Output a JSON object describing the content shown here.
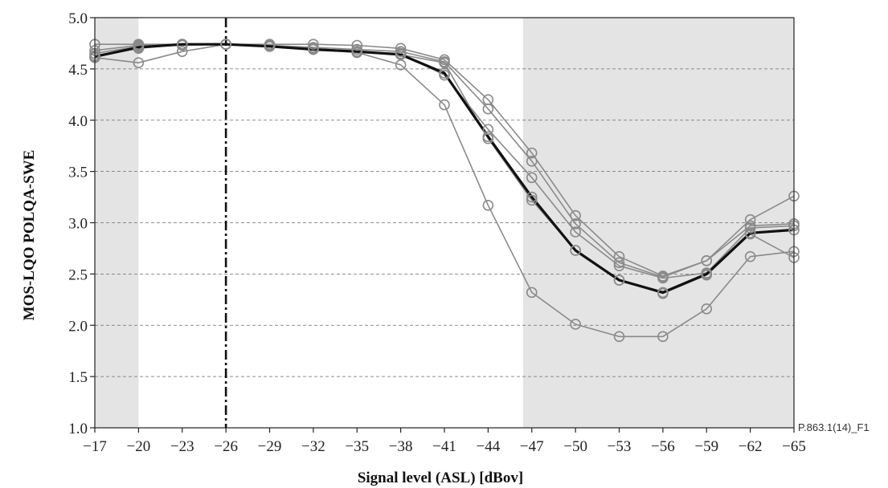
{
  "chart_data": {
    "type": "line",
    "title": "",
    "xlabel": "Signal level (ASL) [dBov]",
    "ylabel": "MOS-LQO POLQA-SWE",
    "figure_id": "P.863.1(14)_F1",
    "x": [
      -17,
      -20,
      -23,
      -26,
      -29,
      -32,
      -35,
      -38,
      -41,
      -44,
      -47,
      -50,
      -53,
      -56,
      -59,
      -62,
      -65
    ],
    "x_tick_labels": [
      "−17",
      "−20",
      "−23",
      "−26",
      "−29",
      "−32",
      "−35",
      "−38",
      "−41",
      "−44",
      "−47",
      "−50",
      "−53",
      "−56",
      "−59",
      "−62",
      "−65"
    ],
    "y_ticks": [
      1.0,
      1.5,
      2.0,
      2.5,
      3.0,
      3.5,
      4.0,
      4.5,
      5.0
    ],
    "y_tick_labels": [
      "1.0",
      "1.5",
      "2.0",
      "2.5",
      "3.0",
      "3.5",
      "4.0",
      "4.5",
      "5.0"
    ],
    "xlim": [
      -17,
      -65
    ],
    "ylim": [
      1.0,
      5.0
    ],
    "grid": "horizontal dashed",
    "shaded_regions": [
      {
        "from": -17,
        "to": -20
      },
      {
        "from": -46.4,
        "to": -65
      }
    ],
    "reference_line_x": -26,
    "series": [
      {
        "values": [
          4.74,
          4.74,
          4.74,
          4.74,
          4.74,
          4.74,
          4.73,
          4.7,
          4.59,
          4.2,
          3.68,
          3.07,
          2.67,
          2.48,
          2.63,
          3.03,
          3.26
        ],
        "color": "#8a8a8a",
        "bold": false
      },
      {
        "values": [
          4.68,
          4.73,
          4.74,
          4.74,
          4.73,
          4.71,
          4.69,
          4.67,
          4.57,
          4.11,
          3.6,
          2.99,
          2.61,
          2.47,
          2.63,
          2.97,
          2.99
        ],
        "color": "#8a8a8a",
        "bold": false
      },
      {
        "values": [
          4.65,
          4.72,
          4.73,
          4.74,
          4.72,
          4.7,
          4.67,
          4.65,
          4.44,
          3.91,
          3.44,
          2.91,
          2.58,
          2.46,
          2.51,
          2.95,
          2.97
        ],
        "color": "#8a8a8a",
        "bold": false
      },
      {
        "values": [
          4.63,
          4.7,
          4.74,
          4.74,
          4.72,
          4.69,
          4.66,
          4.64,
          4.56,
          3.82,
          3.22,
          2.73,
          2.44,
          2.31,
          2.49,
          2.89,
          2.66
        ],
        "color": "#8a8a8a",
        "bold": false
      },
      {
        "values": [
          4.61,
          4.56,
          4.67,
          4.74,
          4.72,
          4.7,
          4.66,
          4.54,
          4.15,
          3.17,
          2.32,
          2.01,
          1.89,
          1.89,
          2.16,
          2.67,
          2.72
        ],
        "color": "#8a8a8a",
        "bold": false
      },
      {
        "values": [
          4.62,
          4.71,
          4.74,
          4.74,
          4.72,
          4.69,
          4.67,
          4.64,
          4.46,
          3.84,
          3.25,
          2.73,
          2.44,
          2.32,
          2.5,
          2.9,
          2.93
        ],
        "color": "#111111",
        "bold": true
      }
    ]
  }
}
